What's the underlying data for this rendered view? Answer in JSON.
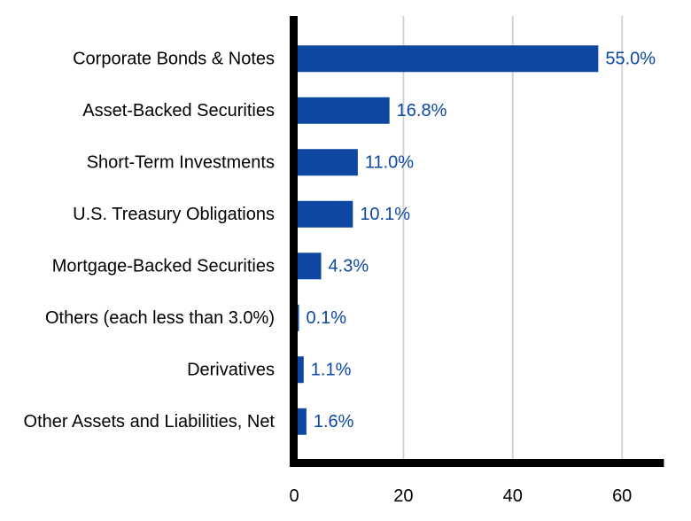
{
  "chart_data": {
    "type": "bar",
    "orientation": "horizontal",
    "categories": [
      "Corporate Bonds & Notes",
      "Asset-Backed Securities",
      "Short-Term Investments",
      "U.S. Treasury Obligations",
      "Mortgage-Backed Securities",
      "Others (each less than 3.0%)",
      "Derivatives",
      "Other Assets and Liabilities, Net"
    ],
    "values": [
      55.0,
      16.8,
      11.0,
      10.1,
      4.3,
      0.1,
      1.1,
      1.6
    ],
    "data_labels": [
      "55.0%",
      "16.8%",
      "11.0%",
      "10.1%",
      "4.3%",
      "0.1%",
      "1.1%",
      "1.6%"
    ],
    "x_ticks": [
      0,
      20,
      40,
      60
    ],
    "x_tick_labels": [
      "0",
      "20",
      "40",
      "60"
    ],
    "xlim": [
      0,
      67.5
    ],
    "title": "",
    "xlabel": "",
    "ylabel": "",
    "grid": "vertical",
    "legend": "none",
    "colors": {
      "bar": "#0D47A1",
      "value_label": "#0D47A1",
      "grid": "#D3D3D3",
      "axis": "#000000"
    }
  }
}
